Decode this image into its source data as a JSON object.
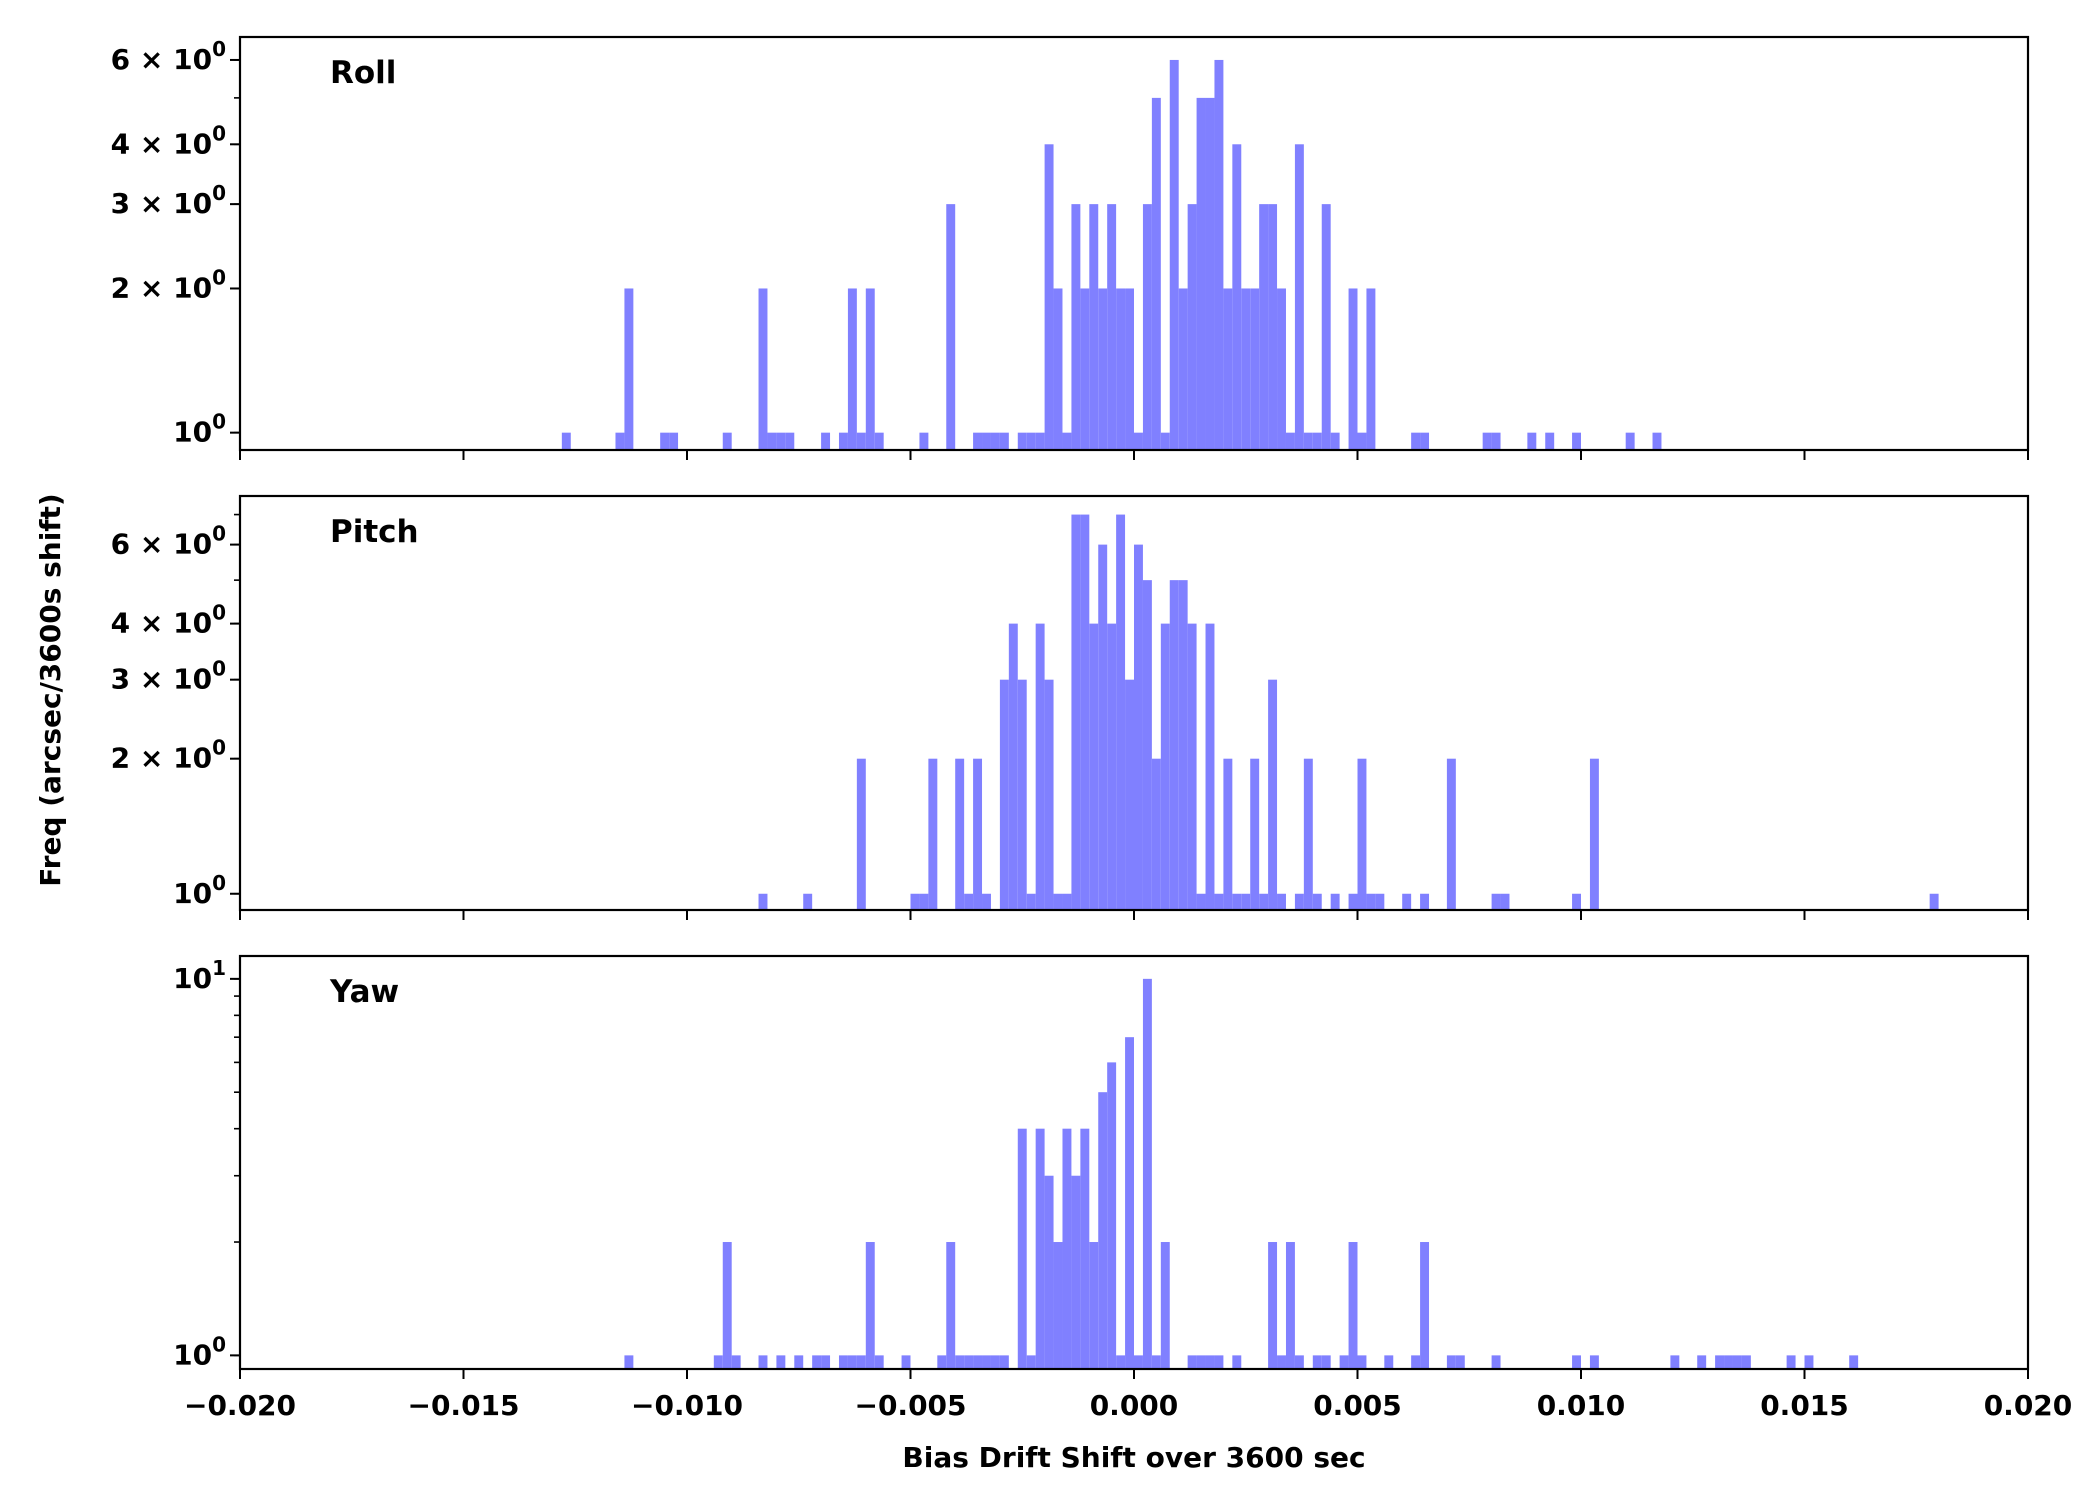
{
  "chart_data": [
    {
      "type": "bar",
      "title": "Roll",
      "bar_color": "#8080ff",
      "yscale": "log",
      "ylim": [
        0.92,
        6.7
      ],
      "xlim": [
        -0.02,
        0.02
      ],
      "bin_width": 0.0002,
      "x": [
        -0.0128,
        -0.0116,
        -0.0114,
        -0.0106,
        -0.0104,
        -0.0092,
        -0.0084,
        -0.0082,
        -0.008,
        -0.0078,
        -0.007,
        -0.0066,
        -0.0064,
        -0.0062,
        -0.006,
        -0.0058,
        -0.0048,
        -0.0042,
        -0.0036,
        -0.0034,
        -0.0032,
        -0.003,
        -0.0026,
        -0.0024,
        -0.0022,
        -0.002,
        -0.0018,
        -0.0016,
        -0.0014,
        -0.0012,
        -0.001,
        -0.0008,
        -0.0006,
        -0.0004,
        -0.0002,
        0.0,
        0.0002,
        0.0004,
        0.0006,
        0.0008,
        0.001,
        0.0012,
        0.0014,
        0.0016,
        0.0018,
        0.002,
        0.0022,
        0.0024,
        0.0026,
        0.0028,
        0.003,
        0.0032,
        0.0034,
        0.0036,
        0.0038,
        0.004,
        0.0042,
        0.0044,
        0.0048,
        0.005,
        0.0052,
        0.0062,
        0.0064,
        0.0078,
        0.008,
        0.0088,
        0.0092,
        0.0098,
        0.011,
        0.0116
      ],
      "values": [
        1,
        1,
        2,
        1,
        1,
        1,
        2,
        1,
        1,
        1,
        1,
        1,
        2,
        1,
        2,
        1,
        1,
        3,
        1,
        1,
        1,
        1,
        1,
        1,
        1,
        4,
        2,
        1,
        3,
        2,
        3,
        2,
        3,
        2,
        2,
        1,
        3,
        5,
        1,
        6,
        2,
        3,
        5,
        5,
        6,
        2,
        4,
        2,
        2,
        3,
        3,
        2,
        1,
        4,
        1,
        1,
        3,
        1,
        2,
        1,
        2,
        1,
        1,
        1,
        1,
        1,
        1,
        1,
        1,
        1
      ]
    },
    {
      "type": "bar",
      "title": "Pitch",
      "bar_color": "#8080ff",
      "yscale": "log",
      "ylim": [
        0.92,
        7.7
      ],
      "xlim": [
        -0.02,
        0.02
      ],
      "bin_width": 0.0002,
      "x": [
        -0.0084,
        -0.0074,
        -0.0062,
        -0.005,
        -0.0048,
        -0.0046,
        -0.004,
        -0.0038,
        -0.0036,
        -0.0034,
        -0.003,
        -0.0028,
        -0.0026,
        -0.0024,
        -0.0022,
        -0.002,
        -0.0018,
        -0.0016,
        -0.0014,
        -0.0012,
        -0.001,
        -0.0008,
        -0.0006,
        -0.0004,
        -0.0002,
        0.0,
        0.0002,
        0.0004,
        0.0006,
        0.0008,
        0.001,
        0.0012,
        0.0014,
        0.0016,
        0.0018,
        0.002,
        0.0022,
        0.0024,
        0.0026,
        0.0028,
        0.003,
        0.0032,
        0.0036,
        0.0038,
        0.004,
        0.0044,
        0.0048,
        0.005,
        0.0052,
        0.0054,
        0.006,
        0.0064,
        0.007,
        0.008,
        0.0082,
        0.0098,
        0.0102,
        0.0178
      ],
      "values": [
        1,
        1,
        2,
        1,
        1,
        2,
        2,
        1,
        2,
        1,
        3,
        4,
        3,
        1,
        4,
        3,
        1,
        1,
        7,
        7,
        4,
        6,
        4,
        7,
        3,
        6,
        5,
        2,
        4,
        5,
        5,
        4,
        1,
        4,
        1,
        2,
        1,
        1,
        2,
        1,
        3,
        1,
        1,
        2,
        1,
        1,
        1,
        2,
        1,
        1,
        1,
        1,
        2,
        1,
        1,
        1,
        2,
        1
      ]
    },
    {
      "type": "bar",
      "title": "Yaw",
      "bar_color": "#8080ff",
      "yscale": "log",
      "ylim": [
        0.92,
        11.5
      ],
      "xlim": [
        -0.02,
        0.02
      ],
      "bin_width": 0.0002,
      "x": [
        -0.0114,
        -0.0094,
        -0.0092,
        -0.009,
        -0.0084,
        -0.008,
        -0.0076,
        -0.0072,
        -0.007,
        -0.0066,
        -0.0064,
        -0.0062,
        -0.006,
        -0.0058,
        -0.0052,
        -0.0044,
        -0.0042,
        -0.004,
        -0.0038,
        -0.0036,
        -0.0034,
        -0.0032,
        -0.003,
        -0.0026,
        -0.0024,
        -0.0022,
        -0.002,
        -0.0018,
        -0.0016,
        -0.0014,
        -0.0012,
        -0.001,
        -0.0008,
        -0.0006,
        -0.0004,
        -0.0002,
        0.0,
        0.0002,
        0.0004,
        0.0006,
        0.0012,
        0.0014,
        0.0016,
        0.0018,
        0.0022,
        0.003,
        0.0032,
        0.0034,
        0.0036,
        0.004,
        0.0042,
        0.0046,
        0.0048,
        0.005,
        0.0056,
        0.0062,
        0.0064,
        0.007,
        0.0072,
        0.008,
        0.0098,
        0.0102,
        0.012,
        0.0126,
        0.013,
        0.0132,
        0.0134,
        0.0136,
        0.0146,
        0.015,
        0.016
      ],
      "values": [
        1,
        1,
        2,
        1,
        1,
        1,
        1,
        1,
        1,
        1,
        1,
        1,
        2,
        1,
        1,
        1,
        2,
        1,
        1,
        1,
        1,
        1,
        1,
        4,
        1,
        4,
        3,
        2,
        4,
        3,
        4,
        2,
        5,
        6,
        1,
        7,
        1,
        10,
        1,
        2,
        1,
        1,
        1,
        1,
        1,
        2,
        1,
        2,
        1,
        1,
        1,
        1,
        2,
        1,
        1,
        1,
        2,
        1,
        1,
        1,
        1,
        1,
        1,
        1,
        1,
        1,
        1,
        1,
        1,
        1,
        1
      ]
    }
  ],
  "axes": {
    "ylabel": "Freq (arcsec/3600s shift)",
    "xlabel": "Bias Drift Shift over 3600 sec",
    "x_ticks": [
      -0.02,
      -0.015,
      -0.01,
      -0.005,
      0.0,
      0.005,
      0.01,
      0.015,
      0.02
    ],
    "x_tick_labels": [
      "−0.020",
      "−0.015",
      "−0.010",
      "−0.005",
      "0.000",
      "0.005",
      "0.010",
      "0.015",
      "0.020"
    ],
    "panel_ticks": [
      {
        "values": [
          1,
          2,
          3,
          4,
          6
        ],
        "labels": [
          {
            "mant": "",
            "exp": "0"
          },
          {
            "mant": "2 × ",
            "exp": "0"
          },
          {
            "mant": "3 × ",
            "exp": "0"
          },
          {
            "mant": "4 × ",
            "exp": "0"
          },
          {
            "mant": "6 × ",
            "exp": "0"
          }
        ]
      },
      {
        "values": [
          1,
          2,
          3,
          4,
          6
        ],
        "labels": [
          {
            "mant": "",
            "exp": "0"
          },
          {
            "mant": "2 × ",
            "exp": "0"
          },
          {
            "mant": "3 × ",
            "exp": "0"
          },
          {
            "mant": "4 × ",
            "exp": "0"
          },
          {
            "mant": "6 × ",
            "exp": "0"
          }
        ]
      },
      {
        "values": [
          1,
          10
        ],
        "labels": [
          {
            "mant": "",
            "exp": "0"
          },
          {
            "mant": "",
            "exp": "1"
          }
        ]
      }
    ]
  }
}
